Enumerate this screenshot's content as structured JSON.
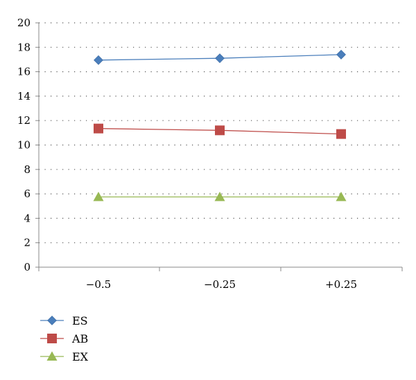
{
  "chart_data": {
    "type": "line",
    "categories": [
      "−0.5",
      "−0.25",
      "+0.25"
    ],
    "series": [
      {
        "name": "ES",
        "values": [
          16.95,
          17.1,
          17.4
        ],
        "color": "#4a7ebb",
        "marker": "diamond"
      },
      {
        "name": "AB",
        "values": [
          11.35,
          11.2,
          10.9
        ],
        "color": "#be4b48",
        "marker": "square"
      },
      {
        "name": "EX",
        "values": [
          5.75,
          5.75,
          5.75
        ],
        "color": "#98b954",
        "marker": "triangle"
      }
    ],
    "ylim": [
      0,
      20
    ],
    "yticks": [
      0,
      2,
      4,
      6,
      8,
      10,
      12,
      14,
      16,
      18,
      20
    ],
    "grid": "horizontal-dotted",
    "legend": "bottom-left",
    "title": "",
    "xlabel": "",
    "ylabel": ""
  }
}
